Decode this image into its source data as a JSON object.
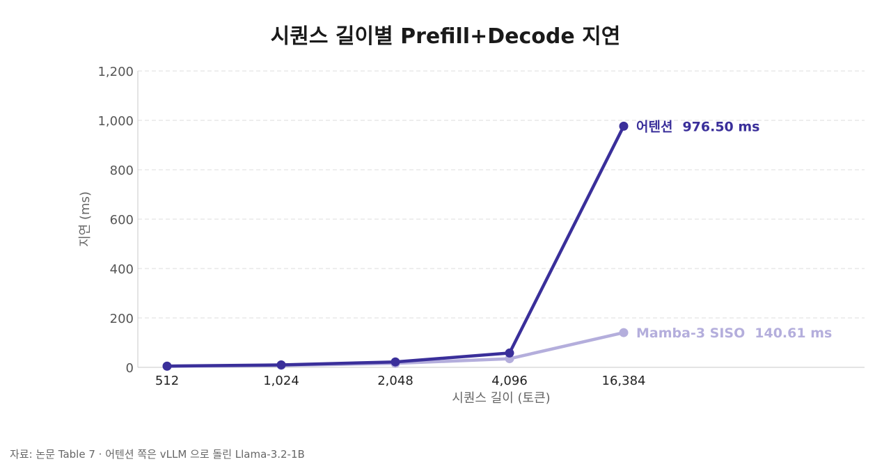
{
  "chart_data": {
    "type": "line",
    "title": "시퀀스 길이별 Prefill+Decode 지연",
    "xlabel": "시퀀스 길이 (토큰)",
    "ylabel": "지연 (ms)",
    "x": [
      "512",
      "1,024",
      "2,048",
      "4,096",
      "16,384"
    ],
    "ylim": [
      0,
      1200
    ],
    "yticks": [
      "0",
      "200",
      "400",
      "600",
      "800",
      "1,000",
      "1,200"
    ],
    "ytick_values": [
      0,
      200,
      400,
      600,
      800,
      1000,
      1200
    ],
    "grid": true,
    "legend": "end-of-line labels",
    "series": [
      {
        "name": "어텐션",
        "values": [
          5,
          10,
          22,
          58,
          976.5
        ],
        "end_value_label": "976.50 ms",
        "color": "#3a2f9a"
      },
      {
        "name": "Mamba-3 SISO",
        "values": [
          4,
          8,
          16,
          35,
          140.61
        ],
        "end_value_label": "140.61 ms",
        "color": "#b4aedc"
      }
    ]
  },
  "source": "자료: 논문 Table 7 · 어텐션 쪽은 vLLM 으로 돌린 Llama-3.2-1B"
}
